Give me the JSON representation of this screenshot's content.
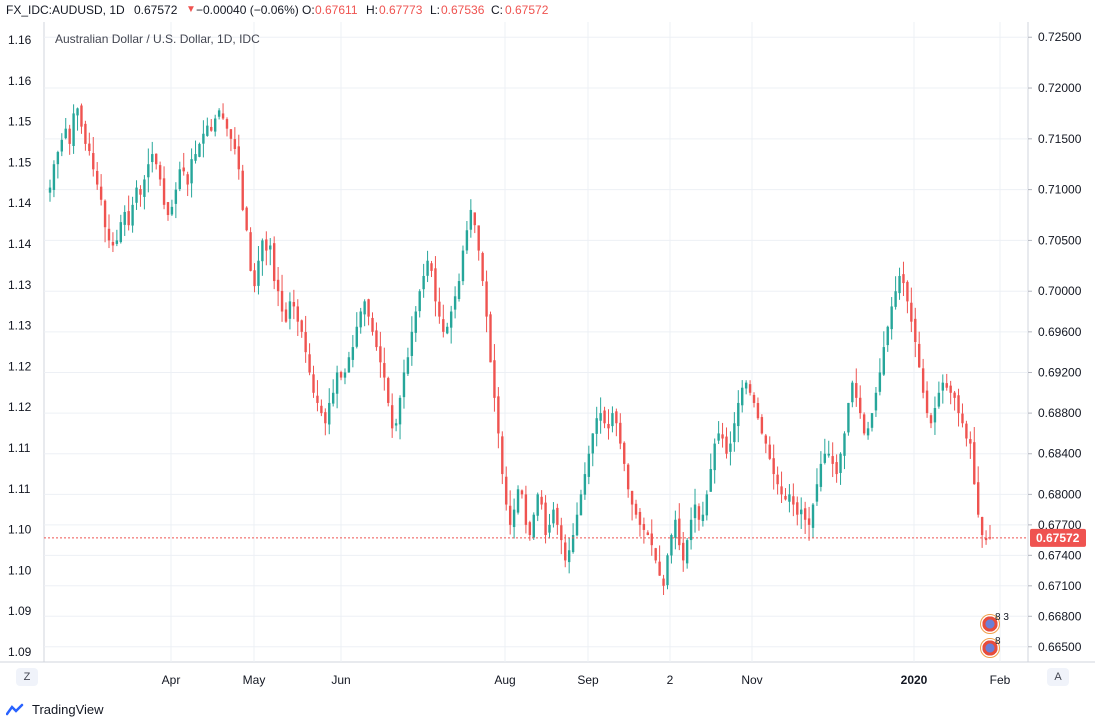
{
  "header": {
    "symbol": "FX_IDC:AUDUSD, 1D",
    "last": "0.67572",
    "change_arrow": "▼",
    "change": "−0.00040 (−0.06%)",
    "o_label": "O:",
    "o_val": "0.67611",
    "h_label": "H:",
    "h_val": "0.67773",
    "l_label": "L:",
    "l_val": "0.67536",
    "c_label": "C:",
    "c_val": "0.67572"
  },
  "legend_title": "Australian Dollar / U.S. Dollar, 1D, IDC",
  "buttons": {
    "left": "Z",
    "right": "A"
  },
  "footer": {
    "brand": "TradingView"
  },
  "event_badges": [
    "8 3",
    "8"
  ],
  "colors": {
    "up": "#26a69a",
    "down": "#ef5350",
    "grid": "#edf0f5",
    "last_price": "#ef5350"
  },
  "chart_data": {
    "type": "candlestick",
    "title": "Australian Dollar / U.S. Dollar, 1D, IDC",
    "right_axis": {
      "ylim": [
        0.6635,
        0.7265
      ],
      "ticks": [
        "0.72500",
        "0.72000",
        "0.71500",
        "0.71000",
        "0.70500",
        "0.70000",
        "0.69600",
        "0.69200",
        "0.68800",
        "0.68400",
        "0.68000",
        "0.67700",
        "0.67400",
        "0.67100",
        "0.66800",
        "0.66500"
      ]
    },
    "left_axis": {
      "ticks": [
        "1.16",
        "1.16",
        "1.15",
        "1.15",
        "1.14",
        "1.14",
        "1.13",
        "1.13",
        "1.12",
        "1.12",
        "1.11",
        "1.11",
        "1.10",
        "1.10",
        "1.09",
        "1.09"
      ]
    },
    "x_ticks": [
      "Apr",
      "May",
      "Jun",
      "Aug",
      "Sep",
      "2",
      "Nov",
      "2020",
      "Feb"
    ],
    "last_price": "0.67572",
    "series_close": [
      0.7102,
      0.7125,
      0.7137,
      0.7149,
      0.716,
      0.7145,
      0.7175,
      0.718,
      0.7162,
      0.7145,
      0.7138,
      0.712,
      0.7105,
      0.709,
      0.7063,
      0.705,
      0.7045,
      0.705,
      0.7068,
      0.7078,
      0.7065,
      0.7085,
      0.7102,
      0.7095,
      0.711,
      0.7125,
      0.7135,
      0.7125,
      0.711,
      0.7085,
      0.7075,
      0.7083,
      0.71,
      0.712,
      0.7118,
      0.7105,
      0.713,
      0.7135,
      0.7145,
      0.7155,
      0.7163,
      0.7158,
      0.717,
      0.7178,
      0.717,
      0.716,
      0.715,
      0.714,
      0.712,
      0.708,
      0.706,
      0.702,
      0.7005,
      0.703,
      0.705,
      0.704,
      0.7045,
      0.701,
      0.7,
      0.698,
      0.697,
      0.699,
      0.6985,
      0.697,
      0.696,
      0.694,
      0.692,
      0.69,
      0.689,
      0.688,
      0.687,
      0.689,
      0.69,
      0.692,
      0.6915,
      0.692,
      0.6935,
      0.6945,
      0.6965,
      0.698,
      0.699,
      0.6975,
      0.696,
      0.6945,
      0.693,
      0.6915,
      0.689,
      0.6865,
      0.687,
      0.6895,
      0.692,
      0.6935,
      0.696,
      0.698,
      0.7,
      0.7015,
      0.703,
      0.702,
      0.699,
      0.6975,
      0.696,
      0.6965,
      0.698,
      0.6995,
      0.701,
      0.704,
      0.706,
      0.708,
      0.7065,
      0.704,
      0.701,
      0.6975,
      0.693,
      0.6895,
      0.686,
      0.682,
      0.679,
      0.677,
      0.6785,
      0.6805,
      0.68,
      0.677,
      0.676,
      0.678,
      0.68,
      0.679,
      0.676,
      0.677,
      0.6785,
      0.677,
      0.6755,
      0.6735,
      0.6745,
      0.676,
      0.678,
      0.68,
      0.682,
      0.684,
      0.686,
      0.6875,
      0.688,
      0.687,
      0.6865,
      0.688,
      0.687,
      0.685,
      0.683,
      0.6805,
      0.679,
      0.678,
      0.677,
      0.6765,
      0.676,
      0.675,
      0.6735,
      0.672,
      0.671,
      0.674,
      0.676,
      0.6775,
      0.675,
      0.6735,
      0.6755,
      0.6775,
      0.679,
      0.6775,
      0.678,
      0.68,
      0.6825,
      0.685,
      0.686,
      0.6855,
      0.684,
      0.685,
      0.687,
      0.689,
      0.6905,
      0.691,
      0.69,
      0.689,
      0.6875,
      0.686,
      0.685,
      0.6835,
      0.682,
      0.681,
      0.68,
      0.6795,
      0.68,
      0.679,
      0.678,
      0.6785,
      0.6775,
      0.677,
      0.679,
      0.681,
      0.683,
      0.684,
      0.684,
      0.683,
      0.682,
      0.684,
      0.686,
      0.689,
      0.691,
      0.6895,
      0.688,
      0.686,
      0.6865,
      0.688,
      0.69,
      0.692,
      0.6945,
      0.6965,
      0.6985,
      0.7,
      0.7015,
      0.7008,
      0.699,
      0.697,
      0.695,
      0.6925,
      0.69,
      0.688,
      0.687,
      0.6885,
      0.69,
      0.691,
      0.6905,
      0.69,
      0.6895,
      0.688,
      0.687,
      0.6855,
      0.685,
      0.681,
      0.678,
      0.676,
      0.6755,
      0.6757
    ]
  }
}
